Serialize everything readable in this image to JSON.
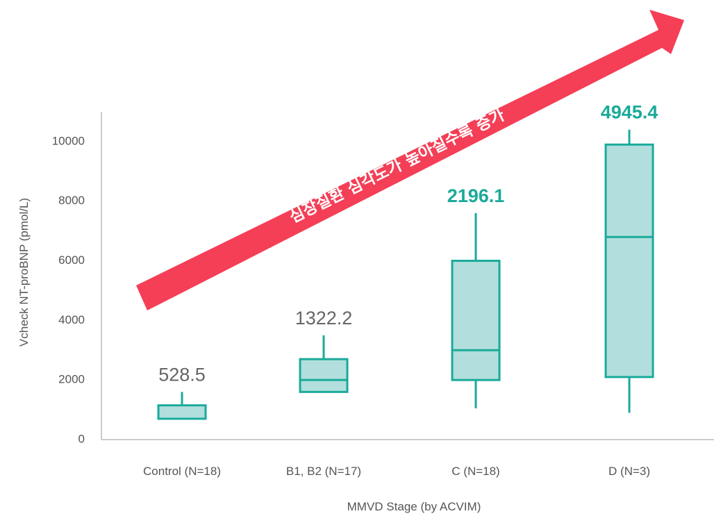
{
  "chart_data": {
    "type": "box",
    "title": "",
    "xlabel": "MMVD Stage (by ACVIM)",
    "ylabel": "Vcheck NT-proBNP (pmol/L)",
    "ylim": [
      0,
      11000
    ],
    "yticks": [
      0,
      2000,
      4000,
      6000,
      8000,
      10000
    ],
    "categories": [
      "Control (N=18)",
      "B1, B2 (N=17)",
      "C (N=18)",
      "D (N=3)"
    ],
    "boxes": [
      {
        "category": "Control (N=18)",
        "min": 700,
        "q1": 700,
        "median": 700,
        "q3": 1150,
        "max": 1600,
        "label": "528.5",
        "label_color": "#666666"
      },
      {
        "category": "B1, B2 (N=17)",
        "min": 1600,
        "q1": 1600,
        "median": 2000,
        "q3": 2700,
        "max": 3500,
        "label": "1322.2",
        "label_color": "#666666"
      },
      {
        "category": "C (N=18)",
        "min": 1050,
        "q1": 2000,
        "median": 3000,
        "q3": 6000,
        "max": 7600,
        "label": "2196.1",
        "label_color": "#1aaa9a"
      },
      {
        "category": "D (N=3)",
        "min": 900,
        "q1": 2100,
        "median": 6800,
        "q3": 9900,
        "max": 10400,
        "label": "4945.4",
        "label_color": "#1aaa9a"
      }
    ],
    "annotation": {
      "text": "심장질환 심각도가 높아질수록 증가",
      "color": "#f43f57"
    },
    "box_fill": "#b2dfdd",
    "box_stroke": "#1aaa9a",
    "axis_color": "#bbbbbb"
  }
}
